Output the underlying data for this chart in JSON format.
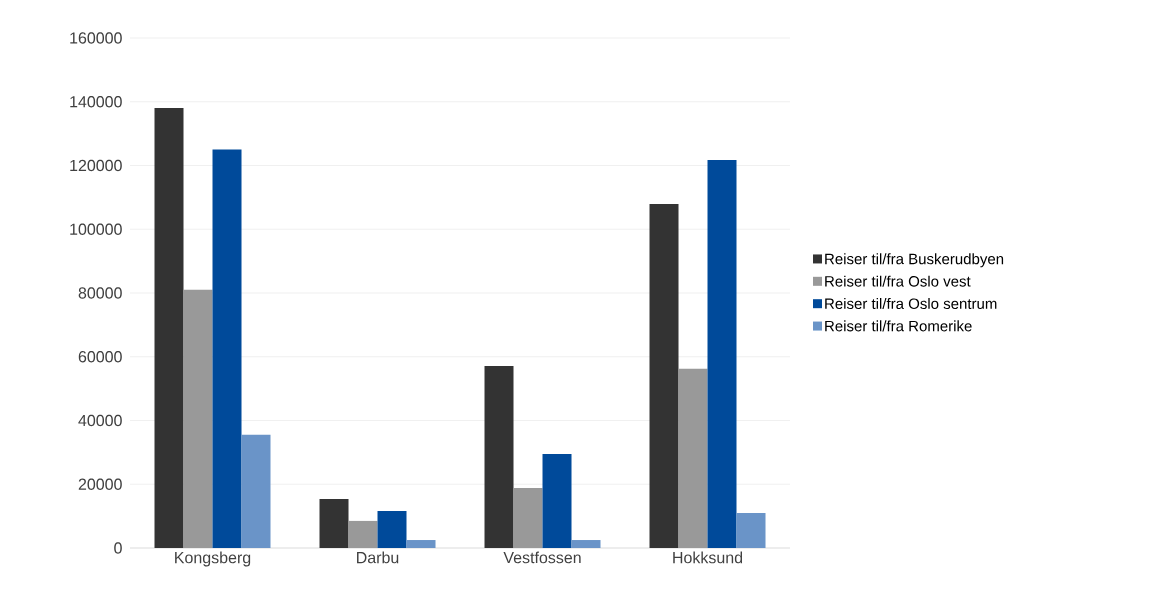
{
  "chart_data": {
    "type": "bar",
    "categories": [
      "Kongsberg",
      "Darbu",
      "Vestfossen",
      "Hokksund"
    ],
    "series": [
      {
        "name": "Reiser til/fra Buskerudbyen",
        "color": "#333333",
        "values": [
          138000,
          15400,
          57100,
          107900
        ]
      },
      {
        "name": "Reiser til/fra Oslo vest",
        "color": "#999999",
        "values": [
          81000,
          8500,
          18800,
          56200
        ]
      },
      {
        "name": "Reiser til/fra Oslo sentrum",
        "color": "#004a9a",
        "values": [
          125000,
          11600,
          29500,
          121700
        ]
      },
      {
        "name": "Reiser til/fra Romerike",
        "color": "#6a94c8",
        "values": [
          35500,
          2500,
          2500,
          11000
        ]
      }
    ],
    "ylim": [
      0,
      160000
    ],
    "yticks": [
      0,
      20000,
      40000,
      60000,
      80000,
      100000,
      120000,
      140000,
      160000
    ],
    "grid": "y",
    "legend": "right"
  }
}
